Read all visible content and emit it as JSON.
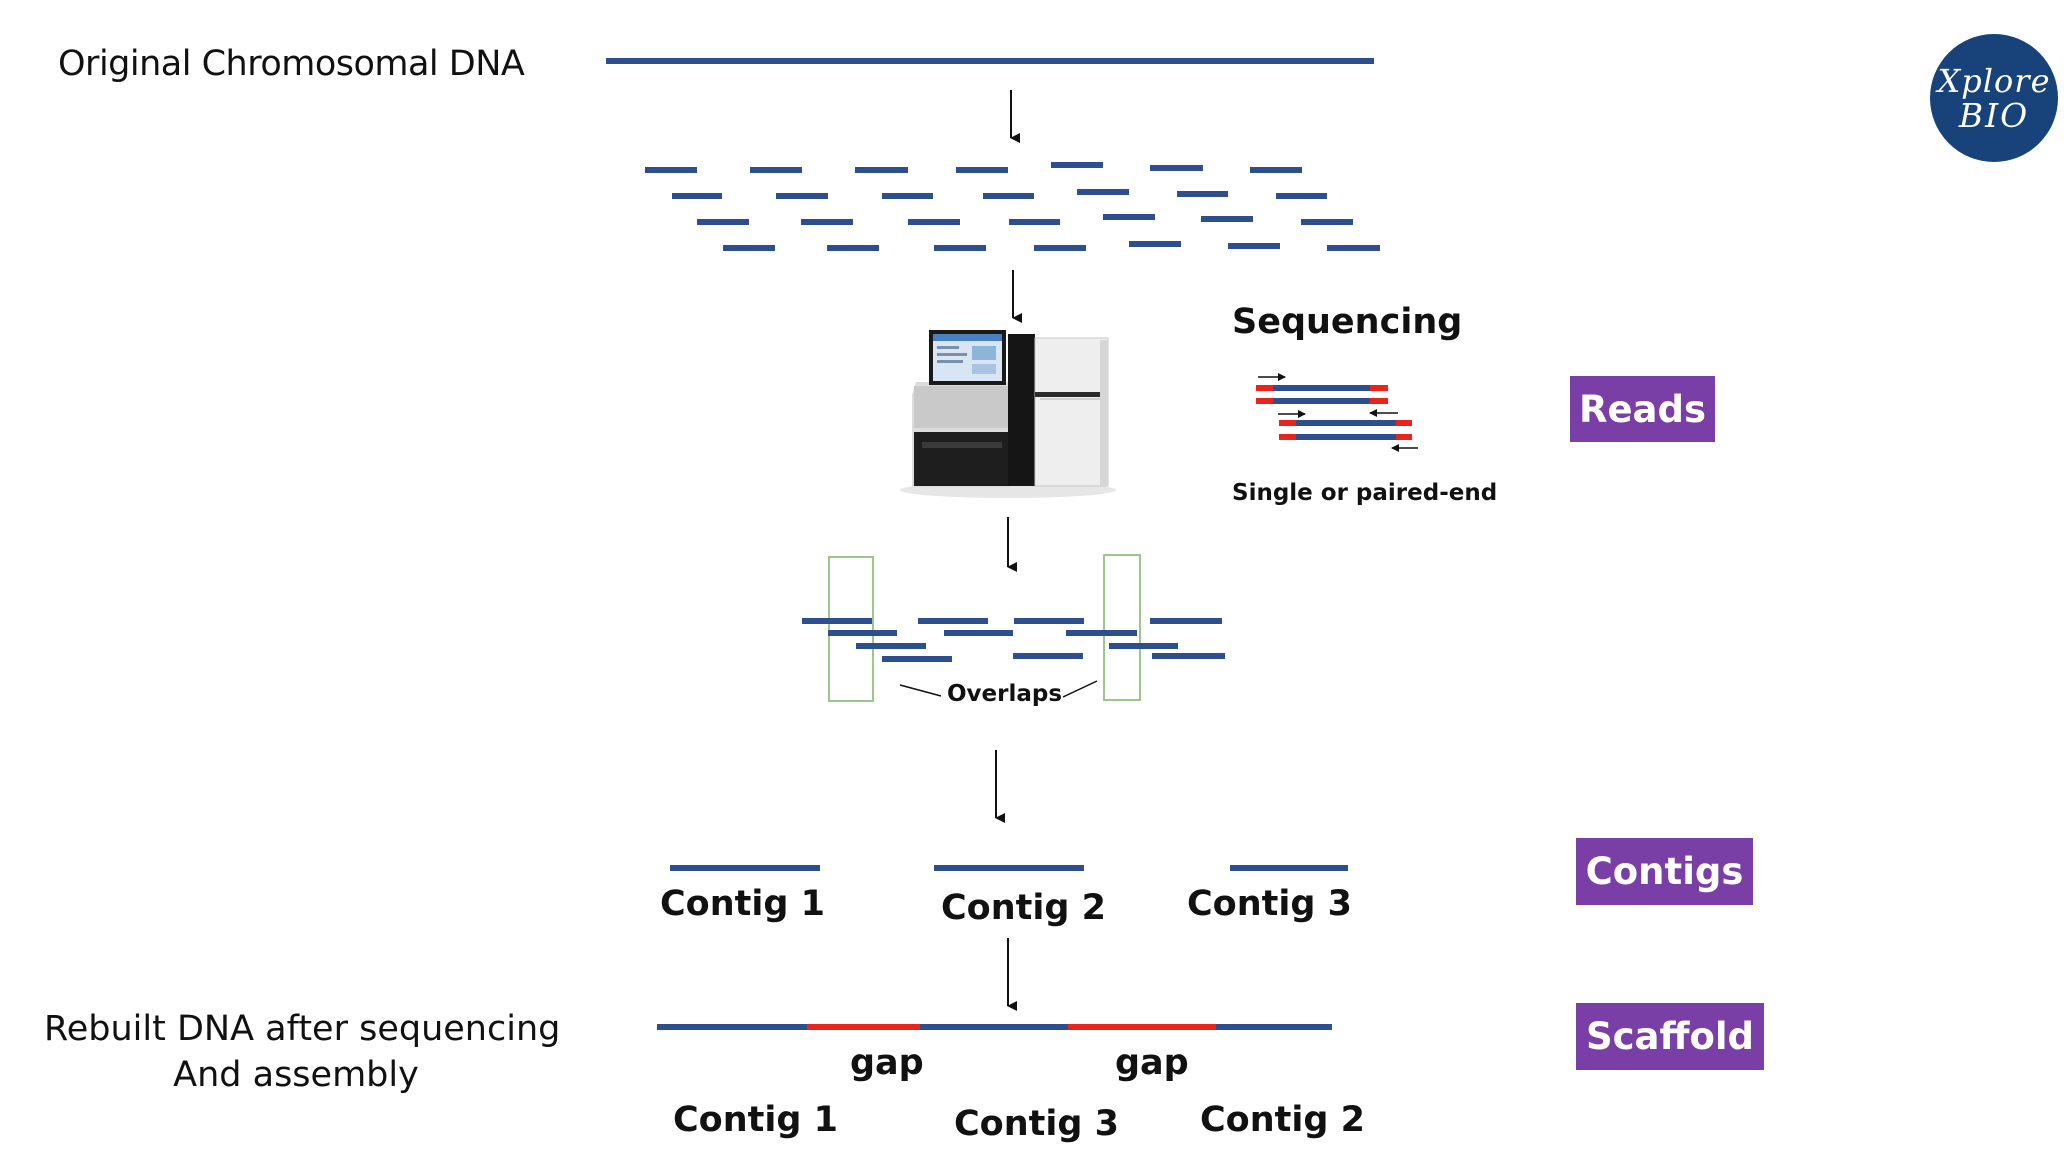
{
  "colors": {
    "dna_blue": "#2e4f8e",
    "gap_red": "#e8241c",
    "badge_purple": "#7a3fa6",
    "logo_navy": "#18427a",
    "overlap_box": "#9fc58f"
  },
  "labels": {
    "original": "Original Chromosomal DNA",
    "sequencing": "Sequencing",
    "single_paired": "Single or paired-end",
    "overlaps": "Overlaps",
    "rebuilt_line1": "Rebuilt DNA after sequencing",
    "rebuilt_line2": "And assembly"
  },
  "badges": {
    "reads": "Reads",
    "contigs": "Contigs",
    "scaffold": "Scaffold"
  },
  "contigs_row": [
    "Contig 1",
    "Contig 2",
    "Contig 3"
  ],
  "scaffold": {
    "gaps": [
      "gap",
      "gap"
    ],
    "order": [
      "Contig 1",
      "Contig 3",
      "Contig 2"
    ]
  },
  "logo": {
    "line1": "Xplore",
    "line2": "BIO"
  },
  "icons": [
    "sequencer-machine-icon",
    "down-arrow-icon",
    "paired-end-reads-icon"
  ]
}
